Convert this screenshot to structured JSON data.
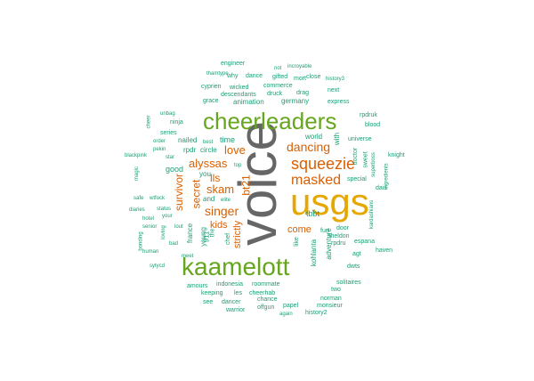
{
  "colors": {
    "grey": "#666666",
    "gold": "#E6A800",
    "green": "#66A61E",
    "orange": "#D95F02",
    "teal": "#1B9E77"
  },
  "big": {
    "voice": "voice",
    "usgs": "usgs",
    "cheerleaders": "cheerleaders",
    "kaamelott": "kaamelott"
  },
  "mid": {
    "squeezie": "squeezie",
    "masked": "masked",
    "singer": "singer",
    "dancing": "dancing",
    "alyssas": "alyssas",
    "love": "love",
    "skam": "skam",
    "secret": "secret",
    "survivor": "survivor",
    "kids": "kids",
    "strictly": "strictly",
    "come": "come",
    "lls": "lls",
    "bt21": "bt21"
  },
  "small": {
    "time": "time",
    "rpdr": "rpdr",
    "circle": "circle",
    "nailed": "nailed",
    "good": "good",
    "and": "and",
    "you": "you",
    "france": "france",
    "young": "young",
    "chef": "chef",
    "nine11": "911",
    "world": "world",
    "tbbt": "tbbt",
    "adventure": "adventure",
    "kohlanta": "kohlanta",
    "sheldon": "sheldon",
    "germany": "germany",
    "animation": "animation",
    "with": "with",
    "like": "like",
    "the": "the",
    "indonesia": "indonesia",
    "roommate": "roommate",
    "cheerhab": "cheerhab",
    "chance": "chance",
    "offgun": "offgun",
    "keeping": "keeping",
    "les": "les",
    "dancer": "dancer",
    "warrior": "warrior",
    "papel": "papel",
    "history2": "history2",
    "monsieur": "monsieur",
    "norman": "norman",
    "two": "two",
    "solitaires": "solitaires",
    "dwts": "dwts",
    "agt": "agt",
    "haven": "haven",
    "espana": "espana",
    "rpdru": "rpdru",
    "fun": "fun",
    "door": "door",
    "special": "special",
    "sweet": "sweet",
    "superboss": "superboss",
    "doctor": "doctor",
    "universe": "universe",
    "knight": "knight",
    "dais": "dais",
    "kardashians": "kardashians",
    "ingredients": "ingredients",
    "rpdruk": "rpdruk",
    "blood": "blood",
    "express": "express",
    "history3": "history3",
    "next": "next",
    "close": "close",
    "gifted": "gifted",
    "mort": "mort",
    "druck": "druck",
    "drag": "drag",
    "commerce": "commerce",
    "dance": "dance",
    "wicked": "wicked",
    "descendants": "descendants",
    "grace": "grace",
    "why": "why",
    "cyprien": "cyprien",
    "engineer": "engineer",
    "incroyable": "incroyable",
    "not": "not",
    "ninja": "ninja",
    "series": "series",
    "order": "order",
    "star": "star",
    "blackpink": "blackpink",
    "magic": "magic",
    "pekin": "pekin",
    "wtfock": "wtfock",
    "safe": "safe",
    "diaries": "diaries",
    "hotel": "hotel",
    "senior": "senior",
    "bad": "bad",
    "your": "your",
    "status": "status",
    "sytycd": "sytycd",
    "amours": "amours",
    "see": "see",
    "again": "again",
    "best": "best",
    "cheer": "cheer",
    "unbag": "unbag",
    "thamtype": "thamtype",
    "top": "top",
    "elite": "elite",
    "lout": "lout",
    "loving": "loving",
    "bonding": "bonding",
    "human": "human",
    "meet": "meet"
  }
}
